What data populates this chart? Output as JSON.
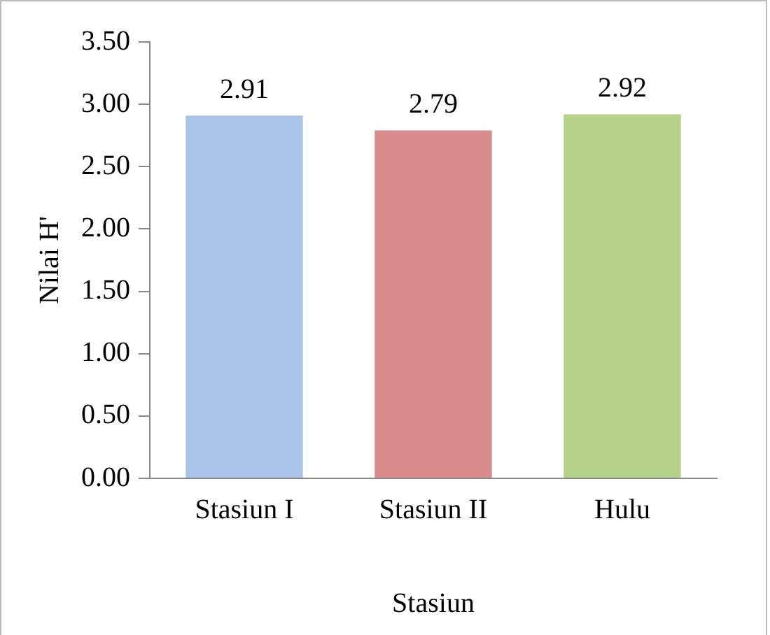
{
  "chart_data": {
    "type": "bar",
    "xlabel": "Stasiun",
    "ylabel": "Nilai H'",
    "categories": [
      "Stasiun I",
      "Stasiun II",
      "Hulu"
    ],
    "values": [
      2.91,
      2.79,
      2.92
    ],
    "colors": [
      "#a9c4e8",
      "#d98c8c",
      "#b5d18a"
    ],
    "ylim": [
      0,
      3.5
    ],
    "yticks": [
      {
        "value": 0,
        "label": "0.00"
      },
      {
        "value": 0.5,
        "label": "0.50"
      },
      {
        "value": 1,
        "label": "1.00"
      },
      {
        "value": 1.5,
        "label": "1.50"
      },
      {
        "value": 2,
        "label": "2.00"
      },
      {
        "value": 2.5,
        "label": "2.50"
      },
      {
        "value": 3,
        "label": "3.00"
      },
      {
        "value": 3.5,
        "label": "3.50"
      }
    ],
    "data_labels": true,
    "grid": false,
    "legend": false
  }
}
